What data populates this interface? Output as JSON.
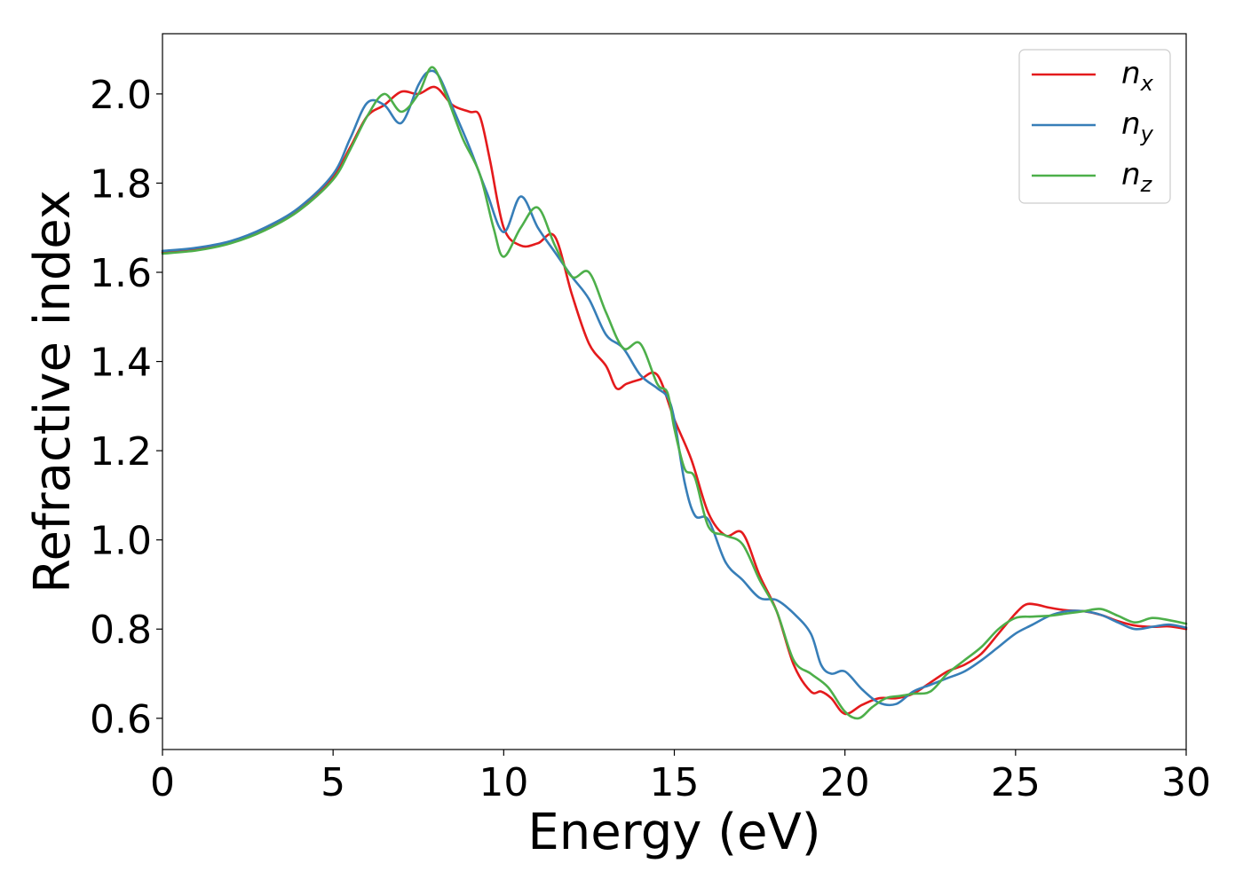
{
  "chart_data": {
    "type": "line",
    "title": "",
    "xlabel": "Energy (eV)",
    "ylabel": "Refractive index",
    "xlim": [
      0,
      30
    ],
    "ylim": [
      0.53,
      2.135
    ],
    "xticks": [
      "0",
      "5",
      "10",
      "15",
      "20",
      "25",
      "30"
    ],
    "yticks": [
      "0.6",
      "0.8",
      "1.0",
      "1.2",
      "1.4",
      "1.6",
      "1.8",
      "2.0"
    ],
    "grid": false,
    "legend_position": "top-right",
    "series": [
      {
        "name": "n",
        "subscript": "x",
        "color": "#e41a1c",
        "x": [
          0,
          1,
          2,
          3,
          4,
          5,
          5.5,
          6,
          6.5,
          7,
          7.5,
          8,
          8.5,
          9,
          9.3,
          9.6,
          10,
          10.5,
          11,
          11.5,
          12,
          12.5,
          13,
          13.3,
          13.6,
          14,
          14.5,
          15,
          15.5,
          16,
          16.5,
          17,
          17.5,
          18,
          18.5,
          19,
          19.3,
          19.6,
          20,
          20.5,
          21,
          21.5,
          22,
          22.5,
          23,
          23.5,
          24,
          24.5,
          25,
          25.3,
          25.6,
          26,
          26.5,
          27,
          27.5,
          28,
          28.5,
          29,
          29.5,
          30
        ],
        "y": [
          1.645,
          1.652,
          1.668,
          1.697,
          1.742,
          1.815,
          1.88,
          1.95,
          1.975,
          2.005,
          2.0,
          2.015,
          1.975,
          1.96,
          1.95,
          1.85,
          1.7,
          1.66,
          1.665,
          1.68,
          1.55,
          1.44,
          1.39,
          1.34,
          1.35,
          1.36,
          1.37,
          1.27,
          1.18,
          1.06,
          1.01,
          1.015,
          0.92,
          0.84,
          0.72,
          0.66,
          0.66,
          0.645,
          0.61,
          0.63,
          0.645,
          0.645,
          0.655,
          0.68,
          0.705,
          0.72,
          0.745,
          0.79,
          0.835,
          0.855,
          0.855,
          0.848,
          0.842,
          0.84,
          0.832,
          0.818,
          0.808,
          0.805,
          0.806,
          0.8
        ]
      },
      {
        "name": "n",
        "subscript": "y",
        "color": "#377eb8",
        "x": [
          0,
          1,
          2,
          3,
          4,
          5,
          5.5,
          6,
          6.5,
          7,
          7.5,
          7.8,
          8.1,
          8.5,
          9,
          9.5,
          10,
          10.5,
          11,
          11.5,
          12,
          12.5,
          13,
          13.5,
          14,
          14.5,
          14.8,
          15,
          15.3,
          15.6,
          16,
          16.5,
          17,
          17.5,
          18,
          18.5,
          19,
          19.3,
          19.6,
          20,
          20.5,
          21,
          21.5,
          22,
          22.5,
          23,
          23.5,
          24,
          24.5,
          25,
          25.5,
          26,
          26.5,
          27,
          27.5,
          28,
          28.5,
          29,
          29.5,
          30
        ],
        "y": [
          1.648,
          1.655,
          1.67,
          1.7,
          1.745,
          1.82,
          1.9,
          1.98,
          1.975,
          1.935,
          2.02,
          2.05,
          2.04,
          1.97,
          1.88,
          1.78,
          1.69,
          1.77,
          1.7,
          1.645,
          1.59,
          1.54,
          1.46,
          1.43,
          1.37,
          1.34,
          1.32,
          1.27,
          1.13,
          1.055,
          1.045,
          0.95,
          0.91,
          0.87,
          0.865,
          0.835,
          0.79,
          0.72,
          0.7,
          0.705,
          0.665,
          0.635,
          0.632,
          0.66,
          0.675,
          0.69,
          0.705,
          0.73,
          0.76,
          0.79,
          0.81,
          0.83,
          0.84,
          0.84,
          0.832,
          0.815,
          0.8,
          0.805,
          0.81,
          0.803
        ]
      },
      {
        "name": "n",
        "subscript": "z",
        "color": "#4daf4a",
        "x": [
          0,
          1,
          2,
          3,
          4,
          5,
          5.5,
          6,
          6.5,
          7,
          7.5,
          7.9,
          8.3,
          8.8,
          9.3,
          9.7,
          10,
          10.5,
          11,
          11.5,
          12,
          12.5,
          13,
          13.5,
          14,
          14.5,
          14.8,
          15,
          15.3,
          15.6,
          16,
          16.5,
          17,
          17.5,
          18,
          18.5,
          19,
          19.5,
          20,
          20.4,
          20.8,
          21.2,
          21.6,
          22,
          22.5,
          23,
          23.5,
          24,
          24.5,
          25,
          25.5,
          26,
          26.5,
          27,
          27.5,
          28,
          28.5,
          29,
          29.5,
          30
        ],
        "y": [
          1.642,
          1.649,
          1.665,
          1.694,
          1.738,
          1.808,
          1.875,
          1.95,
          2.0,
          1.96,
          2.0,
          2.06,
          2.0,
          1.9,
          1.82,
          1.7,
          1.635,
          1.7,
          1.745,
          1.66,
          1.59,
          1.6,
          1.51,
          1.43,
          1.44,
          1.35,
          1.33,
          1.25,
          1.16,
          1.14,
          1.03,
          1.01,
          0.99,
          0.91,
          0.84,
          0.73,
          0.7,
          0.67,
          0.615,
          0.6,
          0.625,
          0.645,
          0.65,
          0.655,
          0.66,
          0.7,
          0.73,
          0.76,
          0.8,
          0.825,
          0.828,
          0.83,
          0.835,
          0.84,
          0.845,
          0.83,
          0.815,
          0.825,
          0.82,
          0.812
        ]
      }
    ]
  }
}
